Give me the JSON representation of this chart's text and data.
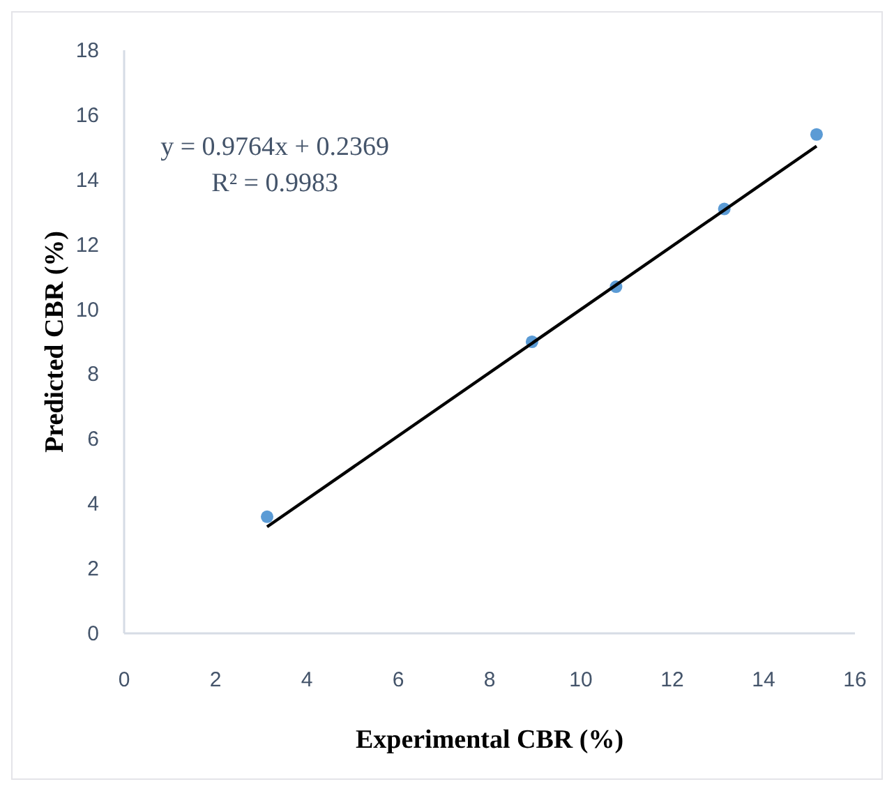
{
  "chart_data": {
    "type": "scatter",
    "xlabel": "Experimental CBR (%)",
    "ylabel": "Predicted CBR (%)",
    "xlim": [
      0,
      16
    ],
    "xticks": [
      0,
      2,
      4,
      6,
      8,
      10,
      12,
      14,
      16
    ],
    "ylim": [
      0,
      18
    ],
    "yticks": [
      0,
      2,
      4,
      6,
      8,
      10,
      12,
      14,
      16,
      18
    ],
    "grid": false,
    "series": [
      {
        "color": "#5b9bd5",
        "marker": "circle",
        "x": [
          3.13,
          8.93,
          10.77,
          13.14,
          15.16
        ],
        "values": [
          3.6,
          9.0,
          10.7,
          13.1,
          15.4
        ]
      },
      {
        "type": "line",
        "color": "#000000",
        "x": [
          3.13,
          15.16
        ],
        "values": [
          3.29,
          15.04
        ]
      }
    ],
    "annotations": [
      "y = 0.9764x + 0.2369",
      "R² = 0.9983"
    ]
  }
}
